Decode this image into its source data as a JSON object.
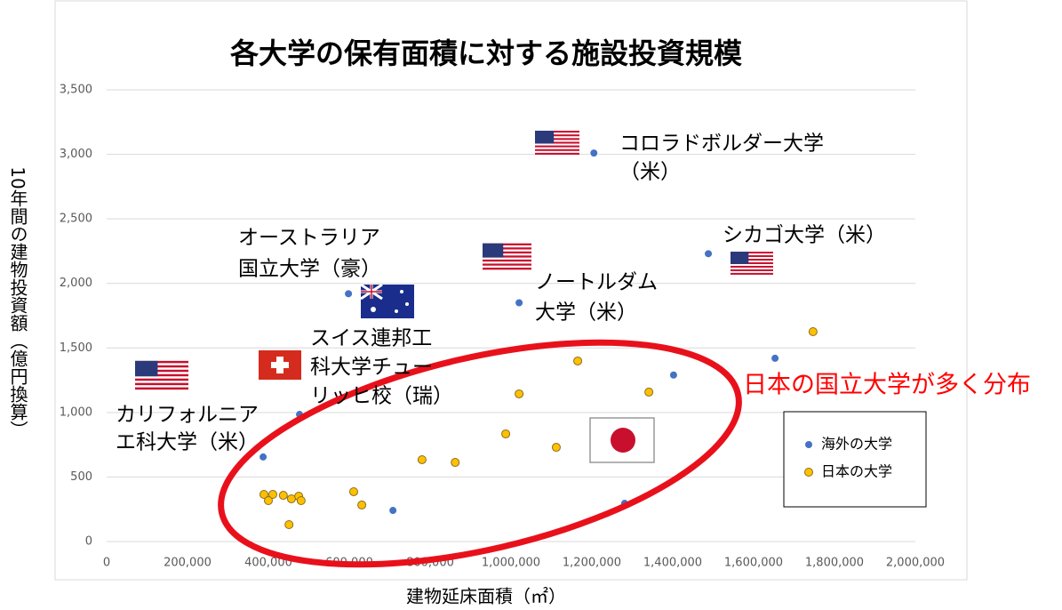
{
  "chart_data": {
    "type": "scatter",
    "title": "各大学の保有面積に対する施設投資規模",
    "xlabel": "建物延床面積（㎡）",
    "ylabel": "10年間の建物投資額（億円換算）",
    "xlim": [
      0,
      2000000
    ],
    "ylim": [
      0,
      3500
    ],
    "xticks": [
      0,
      {
        "value": 200000,
        "label": "200,000"
      },
      {
        "value": 400000,
        "label": "400,000"
      },
      {
        "value": 600000,
        "label": "600,000"
      },
      {
        "value": 800000,
        "label": "800,000"
      },
      {
        "value": 1000000,
        "label": "1,000,000"
      },
      {
        "value": 1200000,
        "label": "1,200,000"
      },
      {
        "value": 1400000,
        "label": "1,400,000"
      },
      {
        "value": 1600000,
        "label": "1,600,000"
      },
      {
        "value": 1800000,
        "label": "1,800,000"
      },
      {
        "value": 2000000,
        "label": "2,000,000"
      }
    ],
    "yticks": [
      0,
      500,
      {
        "value": 1000,
        "label": "1,000"
      },
      {
        "value": 1500,
        "label": "1,500"
      },
      {
        "value": 2000,
        "label": "2,000"
      },
      {
        "value": 2500,
        "label": "2,500"
      },
      {
        "value": 3000,
        "label": "3,000"
      },
      {
        "value": 3500,
        "label": "3,500"
      }
    ],
    "grid": true,
    "legend": "lower right",
    "series": [
      {
        "name": "海外の大学",
        "color": "#4472c4",
        "x": [
          1205000,
          1488000,
          598000,
          1020000,
          1653000,
          1402000,
          477000,
          387000,
          708000,
          1281000
        ],
        "values": [
          3010,
          2230,
          1920,
          1850,
          1420,
          1290,
          985,
          655,
          241,
          296
        ]
      },
      {
        "name": "日本の大学",
        "color": "#ffc000",
        "x": [
          1747000,
          1165000,
          1020000,
          1341000,
          987000,
          1112000,
          780000,
          862000,
          389000,
          411000,
          400000,
          437000,
          457000,
          475000,
          481000,
          611000,
          631000,
          451000
        ],
        "values": [
          1626,
          1399,
          1144,
          1158,
          834,
          730,
          634,
          613,
          365,
          365,
          317,
          358,
          331,
          351,
          317,
          386,
          283,
          131
        ]
      }
    ],
    "annotations": [
      {
        "lines": [
          "コロラドボルダー大学",
          "（米）"
        ]
      },
      {
        "lines": [
          "シカゴ大学（米）"
        ]
      },
      {
        "lines": [
          "オーストラリア",
          "国立大学（豪）"
        ]
      },
      {
        "lines": [
          "ノートルダム",
          "大学（米）"
        ]
      },
      {
        "lines": [
          "スイス連邦工",
          "科大学チュー",
          "リッヒ校（瑞）"
        ]
      },
      {
        "lines": [
          "カリフォルニア",
          "エ科大学（米）"
        ]
      },
      {
        "lines": [
          "日本の国立大学が多く分布"
        ],
        "color": "#ff0000"
      }
    ]
  }
}
